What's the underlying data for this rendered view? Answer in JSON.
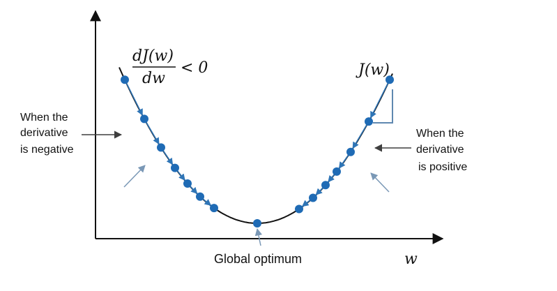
{
  "labels": {
    "derivative_numerator": "dJ(w)",
    "derivative_denominator": "dw",
    "derivative_relation": "< 0",
    "curve_label": "J(w)",
    "x_axis_label": "w",
    "global_optimum": "Global optimum",
    "negative_note_line1": "When the",
    "negative_note_line2": "derivative",
    "negative_note_line3": "is negative",
    "positive_note_line1": "When the",
    "positive_note_line2": "derivative",
    "positive_note_line3": "is positive"
  },
  "colors": {
    "axis": "#111111",
    "curve": "#111111",
    "point": "#1f6bb5",
    "step_arrow": "#2f75b6",
    "tangent_triangle": "#5f88b0",
    "pointer_arrow": "#3f3f3f",
    "light_arrow": "#7a98b6"
  },
  "curve": {
    "description": "convex cost curve",
    "minimum_w": 0
  },
  "descent_points_left": [
    -1.9,
    -1.62,
    -1.38,
    -1.18,
    -1.0,
    -0.82,
    -0.62
  ],
  "descent_points_right": [
    1.9,
    1.6,
    1.34,
    1.14,
    0.98,
    0.8,
    0.6
  ],
  "optimum_point": 0
}
